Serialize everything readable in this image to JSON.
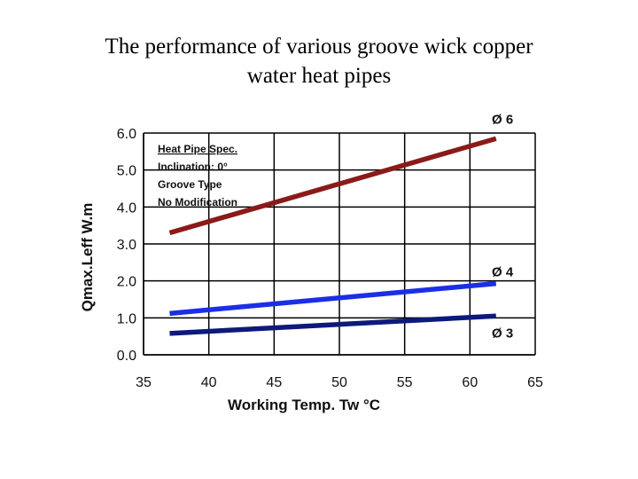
{
  "title": {
    "line1": "The performance of various groove wick copper",
    "line2": "water heat pipes"
  },
  "chart_data": {
    "type": "line",
    "xlabel": "Working Temp. Tw  °C",
    "ylabel": "Qmax.Leff   W.m",
    "xlim": [
      35,
      65
    ],
    "ylim": [
      0,
      6
    ],
    "x_ticks": [
      "35",
      "40",
      "45",
      "50",
      "55",
      "60",
      "65"
    ],
    "y_ticks": [
      "0.0",
      "1.0",
      "2.0",
      "3.0",
      "4.0",
      "5.0",
      "6.0"
    ],
    "grid": true,
    "annotation_lines": [
      "Heat Pipe Spec.",
      "Inclination: 0°",
      "Groove Type",
      "No Modification"
    ],
    "series": [
      {
        "name": "Ø 6",
        "color": "#8b1a1a",
        "x": [
          37,
          62
        ],
        "y": [
          3.3,
          5.85
        ]
      },
      {
        "name": "Ø 4",
        "color": "#1a2fe6",
        "x": [
          37,
          62
        ],
        "y": [
          1.12,
          1.93
        ]
      },
      {
        "name": "Ø 3",
        "color": "#0d1a7a",
        "x": [
          37,
          62
        ],
        "y": [
          0.58,
          1.05
        ]
      }
    ]
  }
}
